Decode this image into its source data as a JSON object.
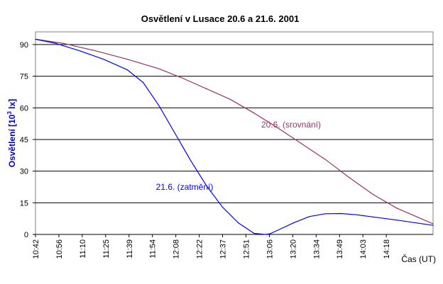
{
  "chart_data": {
    "type": "line",
    "title": "Osvětlení v Lusace 20.6 a 21.6. 2001",
    "ylabel_main": "Osvětlení [10",
    "ylabel_sup": "3",
    "ylabel_end": " lx]",
    "ylabel_color": "#0000CC",
    "xlabel": "Čas (UT)",
    "ylim": [
      0,
      96
    ],
    "yticks": [
      "0",
      "15",
      "30",
      "45",
      "60",
      "75",
      "90"
    ],
    "ytick_values": [
      0,
      15,
      30,
      45,
      60,
      75,
      90
    ],
    "xticks": [
      "10:42",
      "10:56",
      "11:10",
      "11:25",
      "11:39",
      "11:54",
      "12:08",
      "12:22",
      "12:37",
      "12:51",
      "13:06",
      "13:20",
      "13:34",
      "13:49",
      "14:03",
      "14:18"
    ],
    "xrange_minutes": [
      642,
      893
    ],
    "grid": true,
    "series": [
      {
        "name": "20.6. (srovnání)",
        "color": "#993366",
        "x": [
          642,
          660,
          680,
          700,
          720,
          735,
          750,
          765,
          780,
          795,
          810,
          825,
          840,
          855,
          870,
          893
        ],
        "values": [
          92.5,
          90.5,
          87,
          83,
          78.5,
          74,
          69,
          64,
          57.5,
          50.5,
          43,
          35.5,
          27,
          19,
          12.5,
          5
        ]
      },
      {
        "name": "21.6. (zatmění)",
        "color": "#0000FF",
        "x": [
          642,
          655,
          670,
          685,
          700,
          710,
          720,
          730,
          740,
          750,
          760,
          770,
          780,
          787,
          790,
          795,
          805,
          815,
          825,
          835,
          845,
          855,
          870,
          893
        ],
        "values": [
          92.5,
          90.5,
          87,
          83,
          78,
          72,
          61,
          48,
          35,
          23,
          13,
          5.5,
          0.5,
          0,
          0.3,
          2,
          5.5,
          8.5,
          9.8,
          9.9,
          9.3,
          8.3,
          6.8,
          4.3
        ]
      }
    ],
    "annotations": [
      {
        "text": "20.6. (srovnání)",
        "series": 0
      },
      {
        "text": "21.6. (zatmění)",
        "series": 1
      }
    ]
  }
}
